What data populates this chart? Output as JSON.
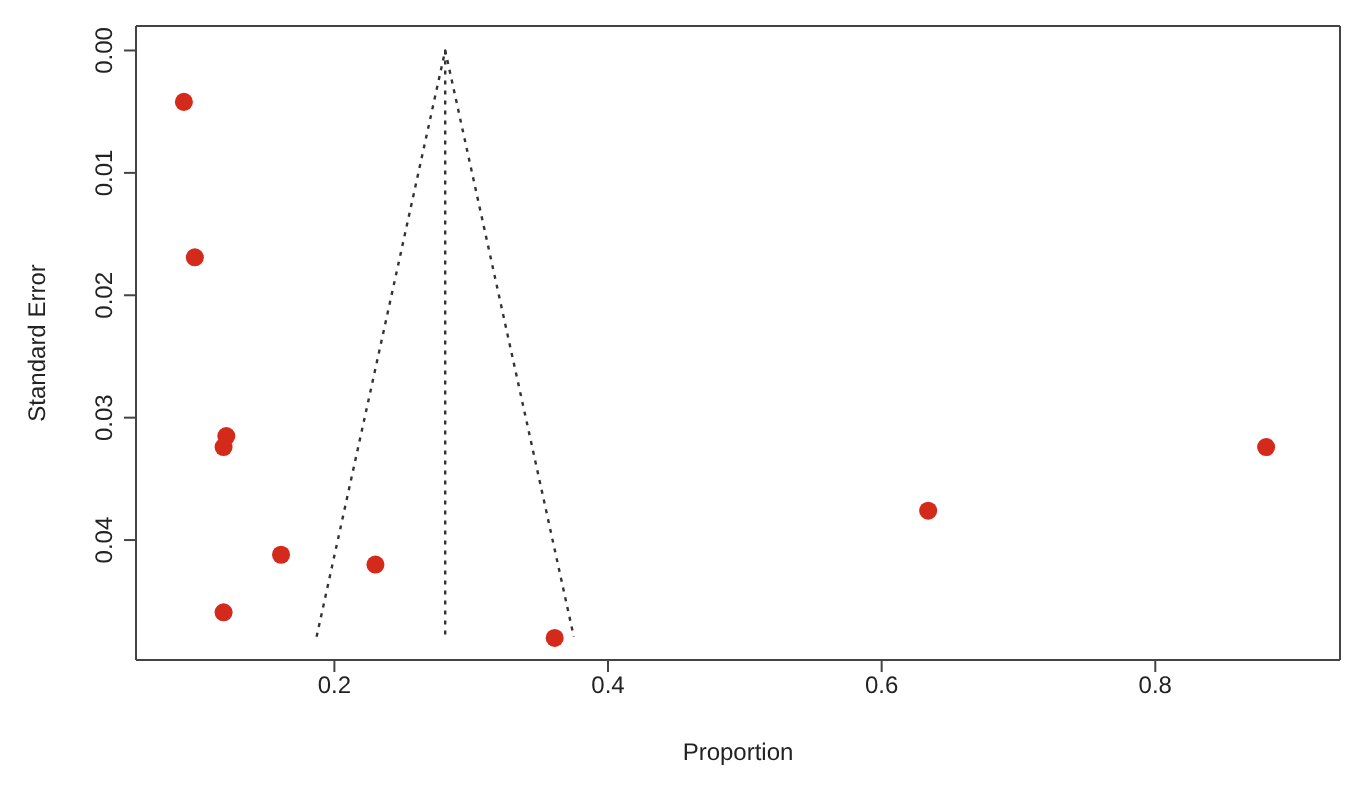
{
  "chart_data": {
    "type": "scatter",
    "xlabel": "Proportion",
    "ylabel": "Standard Error",
    "xlim": [
      0.055,
      0.935
    ],
    "ylim": [
      0.0498,
      -0.002
    ],
    "xticks": [
      0.2,
      0.4,
      0.6,
      0.8
    ],
    "yticks": [
      {
        "value": 0,
        "label": "0.00"
      },
      {
        "value": 0.01,
        "label": "0.01"
      },
      {
        "value": 0.02,
        "label": "0.02"
      },
      {
        "value": 0.03,
        "label": "0.03"
      },
      {
        "value": 0.04,
        "label": "0.04"
      }
    ],
    "grid": false,
    "marker": "circle",
    "series": [
      {
        "color": "#d42a1c",
        "x": [
          0.09,
          0.098,
          0.121,
          0.119,
          0.161,
          0.23,
          0.119,
          0.361,
          0.634,
          0.881
        ],
        "values": [
          0.0042,
          0.0169,
          0.0315,
          0.0324,
          0.0412,
          0.042,
          0.0459,
          0.048,
          0.0376,
          0.0324
        ]
      },
      {
        "type": "line",
        "color": "#333333",
        "line_style": "dotted",
        "marker": "none",
        "x": [
          0.187,
          0.281,
          0.375
        ],
        "values": [
          0.0479,
          0,
          0.0479
        ]
      },
      {
        "type": "line",
        "color": "#333333",
        "line_style": "dotted",
        "marker": "none",
        "x": [
          0.281,
          0.281
        ],
        "values": [
          0,
          0.0479
        ]
      }
    ]
  }
}
